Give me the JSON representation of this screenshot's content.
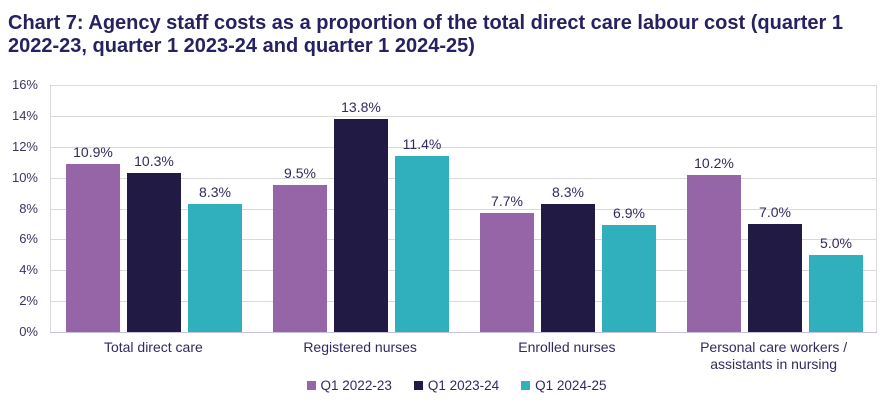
{
  "chart_data": {
    "type": "bar",
    "title": "Chart 7: Agency staff costs as a proportion of the total direct care labour cost (quarter 1 2022-23, quarter 1 2023-24 and quarter 1 2024-25)",
    "categories": [
      "Total direct care",
      "Registered nurses",
      "Enrolled nurses",
      "Personal care workers / assistants in nursing"
    ],
    "series": [
      {
        "name": "Q1 2022-23",
        "values": [
          10.9,
          9.5,
          7.7,
          10.2
        ],
        "labels": [
          "10.9%",
          "9.5%",
          "7.7%",
          "10.2%"
        ],
        "color": "#9565A7"
      },
      {
        "name": "Q1 2023-24",
        "values": [
          10.3,
          13.8,
          8.3,
          7.0
        ],
        "labels": [
          "10.3%",
          "13.8%",
          "8.3%",
          "7.0%"
        ],
        "color": "#211A44"
      },
      {
        "name": "Q1 2024-25",
        "values": [
          8.3,
          11.4,
          6.9,
          5.0
        ],
        "labels": [
          "8.3%",
          "11.4%",
          "6.9%",
          "5.0%"
        ],
        "color": "#2FB0BC"
      }
    ],
    "y_ticks": [
      "16%",
      "14%",
      "12%",
      "10%",
      "8%",
      "6%",
      "4%",
      "2%",
      "0%"
    ],
    "ylim": [
      0,
      16
    ],
    "grid": true,
    "legend_position": "bottom"
  },
  "colors": {
    "title_text": "#262161",
    "axis_text": "#3B3566",
    "gridline": "#D9D9D9",
    "axis_line": "#C6C0DE"
  }
}
